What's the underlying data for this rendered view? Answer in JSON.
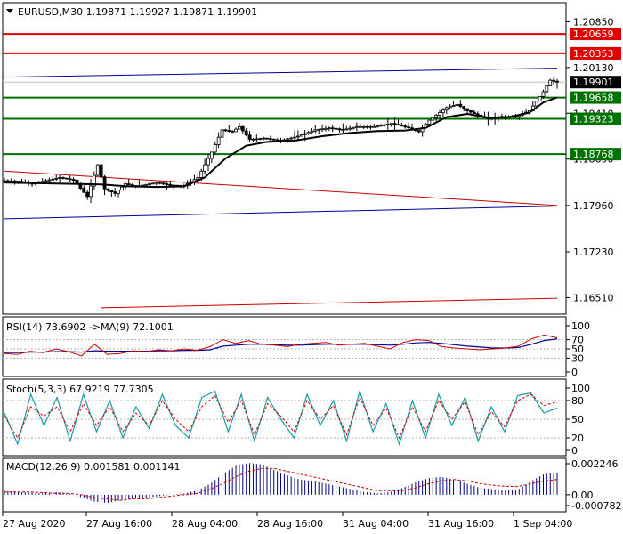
{
  "header": {
    "symbol_line": "EURUSD,M30  1.19871 1.19927 1.19871 1.19901"
  },
  "price_axis": {
    "ticks": [
      "1.20850",
      "1.20130",
      "1.19410",
      "1.18690",
      "1.17960",
      "1.17230",
      "1.16510"
    ],
    "tick_values": [
      1.2085,
      1.2013,
      1.1941,
      1.1869,
      1.1796,
      1.1723,
      1.1651
    ],
    "range": [
      1.1625,
      1.2115
    ],
    "current_price": {
      "label": "1.19901",
      "value": 1.19901,
      "color": "#000000"
    },
    "levels": [
      {
        "label": "1.20659",
        "value": 1.20659,
        "color": "#e00000",
        "kind": "resistance"
      },
      {
        "label": "1.20353",
        "value": 1.20353,
        "color": "#e00000",
        "kind": "resistance"
      },
      {
        "label": "1.19658",
        "value": 1.19658,
        "color": "#007000",
        "kind": "support"
      },
      {
        "label": "1.19323",
        "value": 1.19323,
        "color": "#007000",
        "kind": "support"
      },
      {
        "label": "1.18768",
        "value": 1.18768,
        "color": "#007000",
        "kind": "support"
      }
    ]
  },
  "time_axis": {
    "labels": [
      "27 Aug 2020",
      "27 Aug 16:00",
      "28 Aug 04:00",
      "28 Aug 16:00",
      "31 Aug 04:00",
      "31 Aug 16:00",
      "1 Sep 04:00"
    ]
  },
  "panels": {
    "rsi": {
      "label": "RSI(14) 73.6902  ->MA(9) 72.1001",
      "ticks": [
        "100",
        "70",
        "50",
        "30",
        "0"
      ]
    },
    "stoch": {
      "label": "Stoch(5,3,3) 67.9219 77.7305",
      "ticks": [
        "100",
        "80",
        "50",
        "20",
        "0"
      ]
    },
    "macd": {
      "label": "MACD(12,26,9) 0.001581 0.001141",
      "ticks": [
        "0.002246",
        "0.00",
        "-0.000782"
      ]
    }
  },
  "chart_data": {
    "type": "candlestick",
    "symbol": "EURUSD",
    "timeframe": "M30",
    "ohlc_last": {
      "open": 1.19871,
      "high": 1.19927,
      "low": 1.19871,
      "close": 1.19901
    },
    "close_path": [
      [
        0,
        1.1835
      ],
      [
        4,
        1.1834
      ],
      [
        8,
        1.183
      ],
      [
        12,
        1.1835
      ],
      [
        16,
        1.184
      ],
      [
        20,
        1.1836
      ],
      [
        24,
        1.181
      ],
      [
        27,
        1.186
      ],
      [
        29,
        1.1822
      ],
      [
        32,
        1.1815
      ],
      [
        35,
        1.183
      ],
      [
        38,
        1.1826
      ],
      [
        44,
        1.1832
      ],
      [
        48,
        1.1828
      ],
      [
        52,
        1.1827
      ],
      [
        56,
        1.184
      ],
      [
        60,
        1.188
      ],
      [
        63,
        1.1915
      ],
      [
        66,
        1.1912
      ],
      [
        68,
        1.192
      ],
      [
        71,
        1.19
      ],
      [
        75,
        1.1902
      ],
      [
        80,
        1.1898
      ],
      [
        85,
        1.1905
      ],
      [
        90,
        1.1915
      ],
      [
        94,
        1.1918
      ],
      [
        98,
        1.1915
      ],
      [
        102,
        1.192
      ],
      [
        107,
        1.192
      ],
      [
        112,
        1.1925
      ],
      [
        117,
        1.1918
      ],
      [
        120,
        1.1912
      ],
      [
        123,
        1.193
      ],
      [
        126,
        1.1942
      ],
      [
        128,
        1.195
      ],
      [
        131,
        1.1955
      ],
      [
        134,
        1.1945
      ],
      [
        137,
        1.1938
      ],
      [
        140,
        1.1932
      ],
      [
        144,
        1.1936
      ],
      [
        148,
        1.1936
      ],
      [
        152,
        1.1945
      ],
      [
        156,
        1.1975
      ],
      [
        158,
        1.1993
      ],
      [
        160,
        1.199
      ]
    ],
    "ma_path": [
      [
        0,
        1.1832
      ],
      [
        10,
        1.1831
      ],
      [
        20,
        1.183
      ],
      [
        28,
        1.1829
      ],
      [
        36,
        1.1826
      ],
      [
        44,
        1.1825
      ],
      [
        52,
        1.1826
      ],
      [
        58,
        1.184
      ],
      [
        64,
        1.187
      ],
      [
        70,
        1.189
      ],
      [
        76,
        1.1896
      ],
      [
        84,
        1.1898
      ],
      [
        92,
        1.1905
      ],
      [
        100,
        1.191
      ],
      [
        108,
        1.1913
      ],
      [
        116,
        1.1914
      ],
      [
        122,
        1.1918
      ],
      [
        128,
        1.1935
      ],
      [
        134,
        1.194
      ],
      [
        140,
        1.1934
      ],
      [
        146,
        1.1935
      ],
      [
        152,
        1.1942
      ],
      [
        156,
        1.1958
      ],
      [
        160,
        1.1966
      ]
    ],
    "trend_lines": [
      {
        "color": "#000099",
        "from": [
          0,
          1.1998
        ],
        "to": [
          160,
          1.2012
        ]
      },
      {
        "color": "#000099",
        "from": [
          0,
          1.1775
        ],
        "to": [
          160,
          1.1795
        ]
      },
      {
        "color": "#cc0000",
        "from": [
          0,
          1.185
        ],
        "to": [
          160,
          1.1796
        ]
      },
      {
        "color": "#cc0000",
        "from": [
          28,
          1.1635
        ],
        "to": [
          160,
          1.165
        ]
      }
    ],
    "rsi": {
      "values": [
        40,
        38,
        45,
        42,
        50,
        44,
        35,
        60,
        38,
        40,
        46,
        44,
        48,
        46,
        50,
        47,
        55,
        70,
        62,
        68,
        60,
        58,
        55,
        60,
        62,
        64,
        58,
        60,
        62,
        56,
        50,
        64,
        70,
        68,
        55,
        52,
        50,
        48,
        50,
        52,
        56,
        72,
        80,
        74
      ],
      "ma": [
        42,
        42,
        43,
        43,
        44,
        44,
        43,
        46,
        45,
        45,
        45,
        45,
        46,
        46,
        47,
        47,
        48,
        56,
        58,
        60,
        60,
        59,
        58,
        58,
        59,
        60,
        60,
        60,
        60,
        59,
        58,
        60,
        63,
        64,
        62,
        59,
        56,
        54,
        52,
        52,
        53,
        60,
        68,
        72
      ]
    },
    "stoch": {
      "k": [
        60,
        10,
        90,
        40,
        85,
        15,
        90,
        30,
        80,
        20,
        70,
        35,
        90,
        40,
        20,
        85,
        95,
        30,
        90,
        15,
        85,
        50,
        20,
        90,
        40,
        80,
        15,
        95,
        30,
        75,
        10,
        80,
        20,
        90,
        40,
        85,
        15,
        70,
        30,
        88,
        92,
        60,
        68
      ],
      "d": [
        55,
        20,
        70,
        55,
        70,
        30,
        75,
        40,
        70,
        30,
        60,
        40,
        80,
        50,
        30,
        70,
        88,
        45,
        80,
        25,
        75,
        55,
        30,
        80,
        50,
        72,
        25,
        85,
        40,
        68,
        20,
        70,
        30,
        80,
        50,
        78,
        25,
        62,
        38,
        80,
        90,
        72,
        78
      ]
    },
    "macd": {
      "hist": [
        0.0003,
        0.0002,
        0.00015,
        0.0001,
        0.0002,
        0.0001,
        -0.0002,
        -0.0005,
        -0.0006,
        -0.0004,
        -0.0003,
        -0.0002,
        -0.0001,
        0.0,
        0.0001,
        0.0003,
        0.0008,
        0.0015,
        0.0021,
        0.0023,
        0.0022,
        0.0018,
        0.0014,
        0.0011,
        0.001,
        0.0008,
        0.0006,
        0.0004,
        0.0002,
        0.0001,
        0.0002,
        0.0005,
        0.0009,
        0.0012,
        0.0013,
        0.0011,
        0.0008,
        0.0005,
        0.0004,
        0.0003,
        0.0004,
        0.001,
        0.0015,
        0.0016
      ],
      "signal": [
        0.0002,
        0.0002,
        0.0002,
        0.00015,
        0.0001,
        0.0001,
        0.0,
        -0.0002,
        -0.0003,
        -0.0004,
        -0.0003,
        -0.0003,
        -0.0002,
        -0.0001,
        0.0,
        0.0001,
        0.0004,
        0.0008,
        0.0013,
        0.0017,
        0.0019,
        0.0019,
        0.0017,
        0.0015,
        0.0013,
        0.0011,
        0.0009,
        0.0007,
        0.0005,
        0.0003,
        0.0003,
        0.0003,
        0.0005,
        0.0008,
        0.001,
        0.0011,
        0.001,
        0.0008,
        0.0007,
        0.0006,
        0.0006,
        0.0008,
        0.001,
        0.0011
      ]
    }
  }
}
